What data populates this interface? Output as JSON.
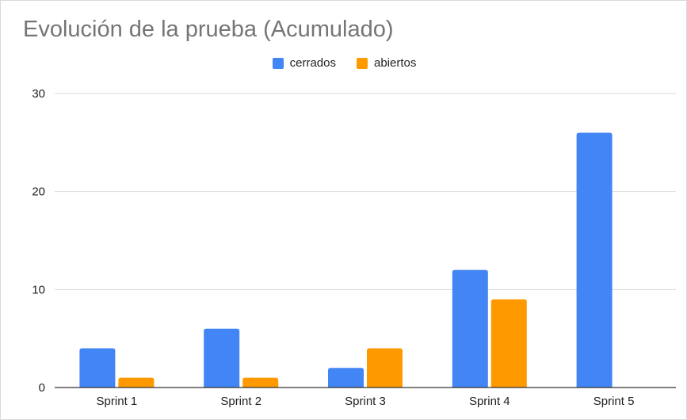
{
  "chart_data": {
    "type": "bar",
    "title": "Evolución de la prueba (Acumulado)",
    "categories": [
      "Sprint 1",
      "Sprint 2",
      "Sprint 3",
      "Sprint 4",
      "Sprint 5"
    ],
    "series": [
      {
        "name": "cerrados",
        "values": [
          4,
          6,
          2,
          12,
          26
        ],
        "color": "#4285f4"
      },
      {
        "name": "abiertos",
        "values": [
          1,
          1,
          4,
          9,
          0
        ],
        "color": "#ff9900"
      }
    ],
    "xlabel": "",
    "ylabel": "",
    "ylim": [
      0,
      30
    ],
    "yticks": [
      "0",
      "10",
      "20",
      "30"
    ],
    "grid": true,
    "legend_position": "top-center"
  }
}
